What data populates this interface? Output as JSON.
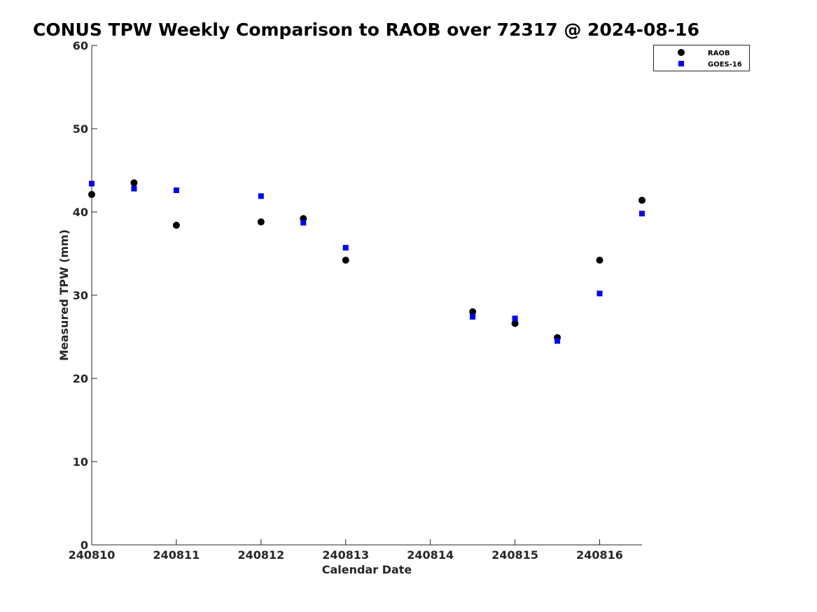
{
  "chart_data": {
    "type": "scatter",
    "title": "CONUS TPW Weekly Comparison to RAOB over 72317 @ 2024-08-16",
    "xlabel": "Calendar Date",
    "ylabel": "Measured TPW (mm)",
    "xlim": [
      240810,
      240816.5
    ],
    "ylim": [
      0,
      60
    ],
    "x_ticks": [
      "240810",
      "240811",
      "240812",
      "240813",
      "240814",
      "240815",
      "240816"
    ],
    "y_ticks": [
      "0",
      "10",
      "20",
      "30",
      "40",
      "50",
      "60"
    ],
    "grid": false,
    "legend_position": "top-right",
    "series": [
      {
        "name": "RAOB",
        "marker": "circle",
        "color": "#000000",
        "points": [
          {
            "x": 240810.0,
            "y": 42.1
          },
          {
            "x": 240810.5,
            "y": 43.5
          },
          {
            "x": 240811.0,
            "y": 38.4
          },
          {
            "x": 240812.0,
            "y": 38.8
          },
          {
            "x": 240812.5,
            "y": 39.2
          },
          {
            "x": 240813.0,
            "y": 34.2
          },
          {
            "x": 240814.5,
            "y": 28.0
          },
          {
            "x": 240815.0,
            "y": 26.6
          },
          {
            "x": 240815.5,
            "y": 24.9
          },
          {
            "x": 240816.0,
            "y": 34.2
          },
          {
            "x": 240816.5,
            "y": 41.4
          }
        ]
      },
      {
        "name": "GOES-16",
        "marker": "square",
        "color": "#0000ff",
        "points": [
          {
            "x": 240810.0,
            "y": 43.4
          },
          {
            "x": 240810.5,
            "y": 42.8
          },
          {
            "x": 240811.0,
            "y": 42.6
          },
          {
            "x": 240812.0,
            "y": 41.9
          },
          {
            "x": 240812.5,
            "y": 38.7
          },
          {
            "x": 240813.0,
            "y": 35.7
          },
          {
            "x": 240814.5,
            "y": 27.4
          },
          {
            "x": 240815.0,
            "y": 27.2
          },
          {
            "x": 240815.5,
            "y": 24.5
          },
          {
            "x": 240816.0,
            "y": 30.2
          },
          {
            "x": 240816.5,
            "y": 39.8
          }
        ]
      }
    ]
  }
}
